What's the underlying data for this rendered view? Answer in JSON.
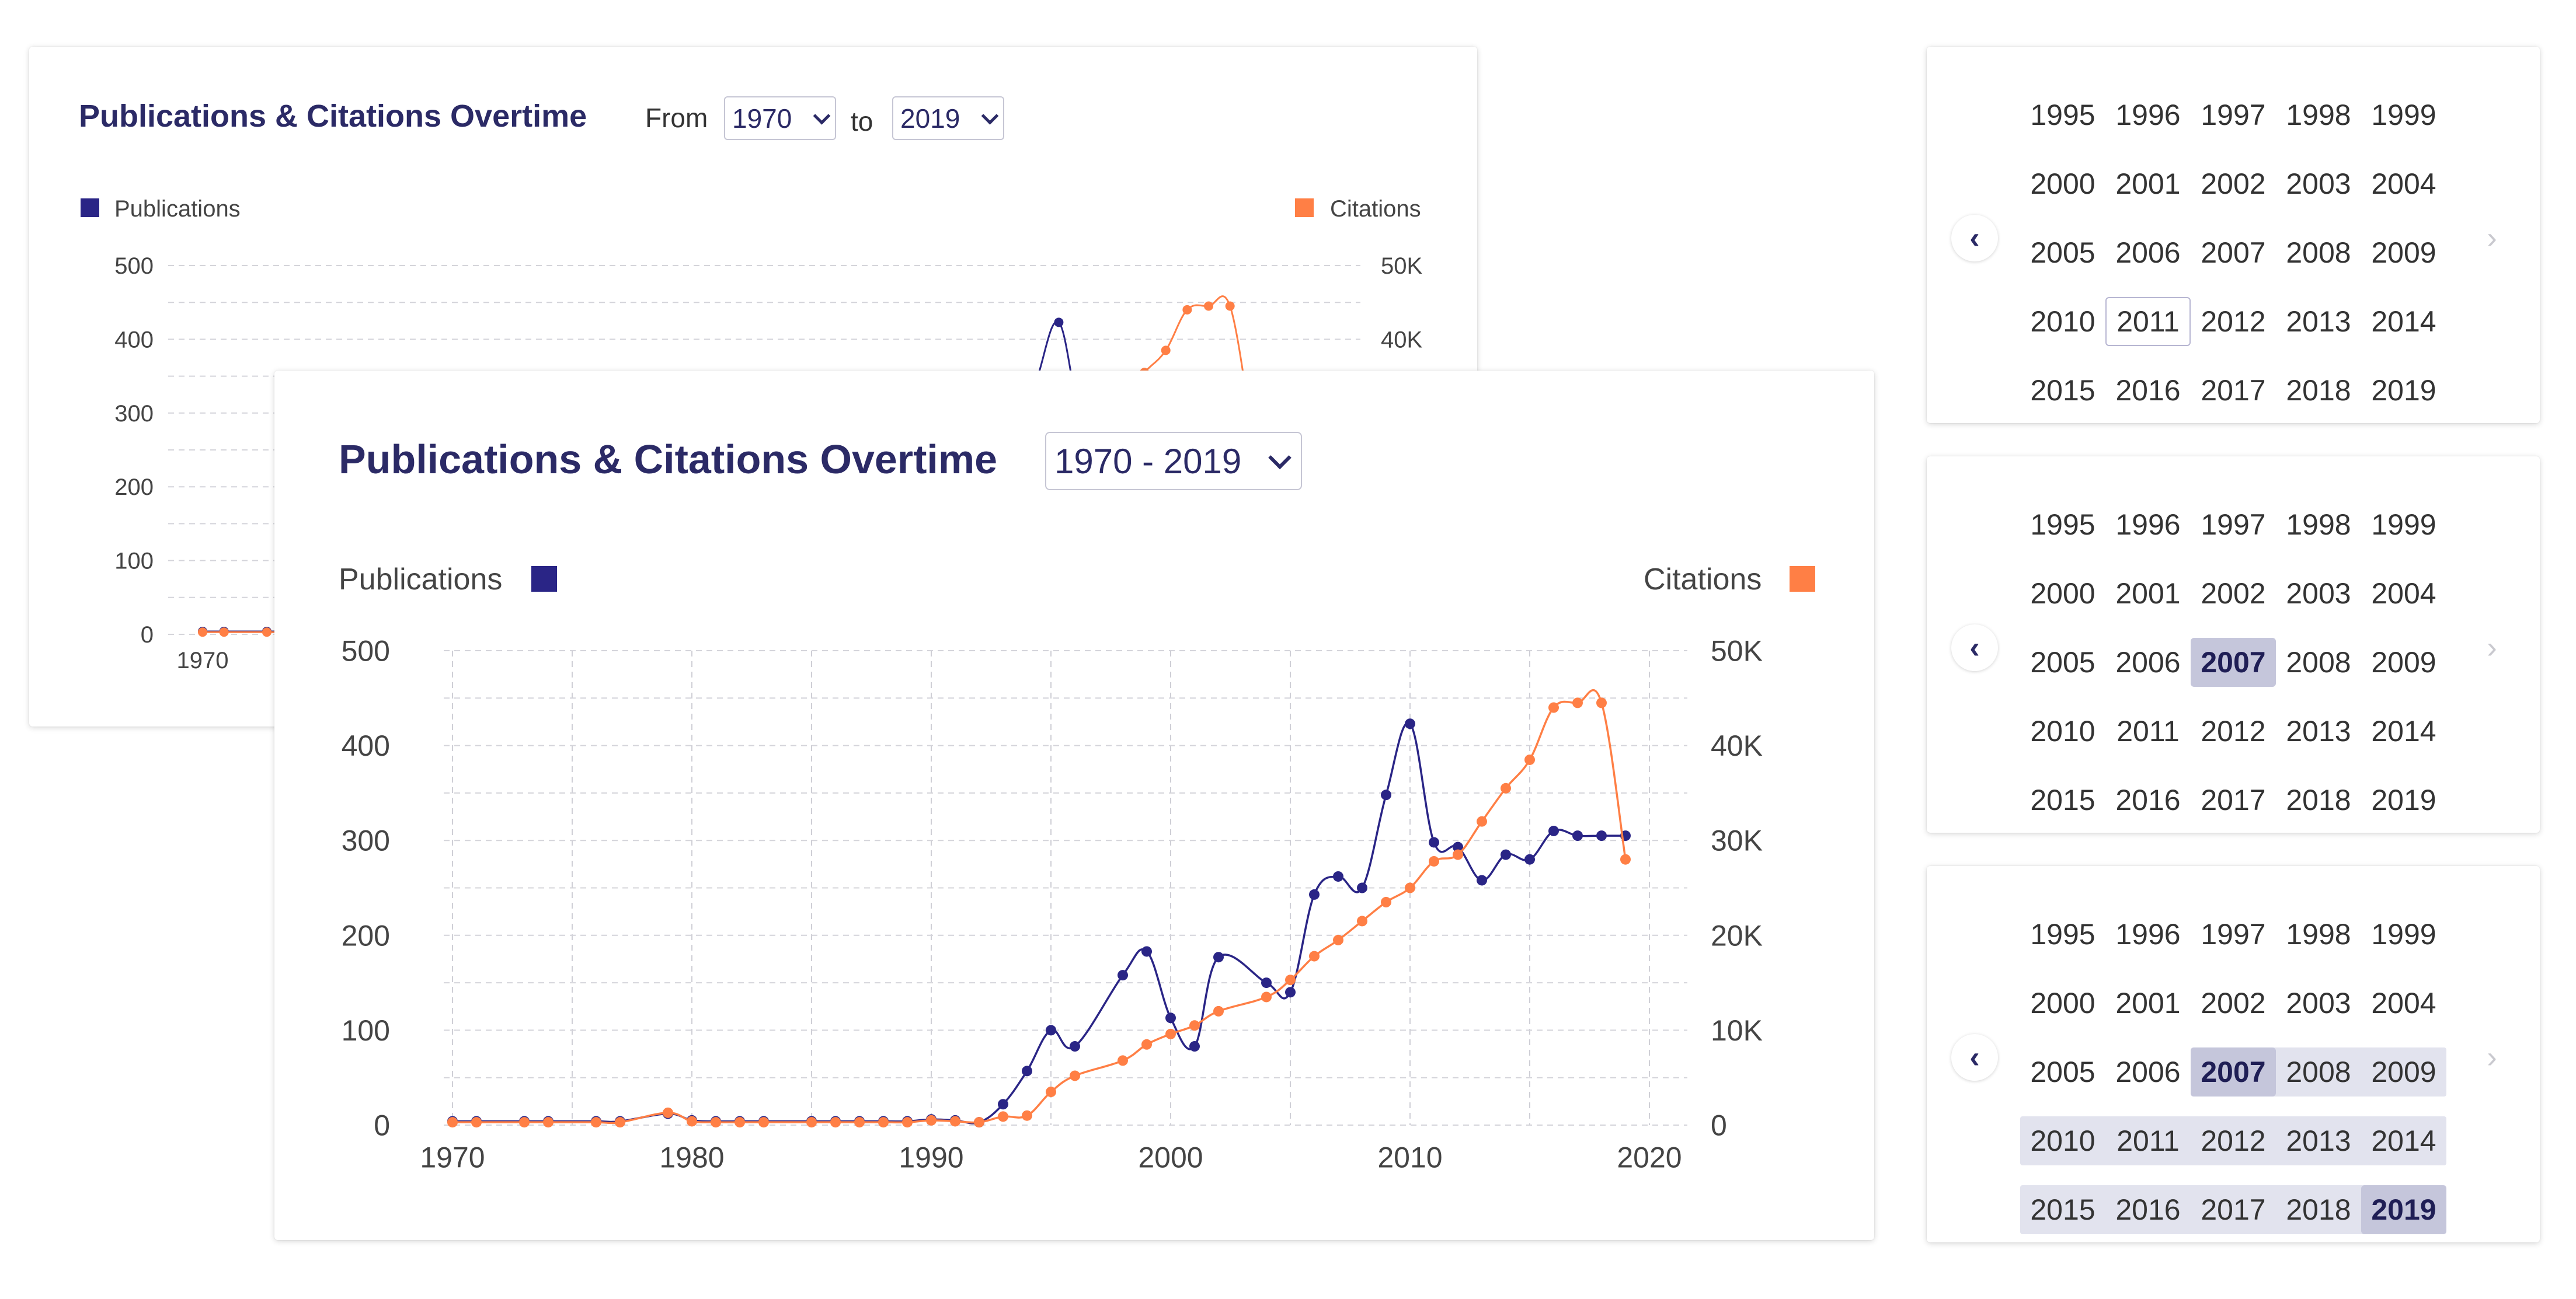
{
  "back_panel": {
    "title": "Publications & Citations Overtime",
    "from_label": "From",
    "from_value": "1970",
    "to_label": "to",
    "to_value": "2019",
    "legend_left": "Publications",
    "legend_right": "Citations",
    "left_ticks": [
      "500",
      "400",
      "300",
      "200",
      "100",
      "0"
    ],
    "right_ticks": [
      "50K",
      "40K"
    ],
    "x_first_tick": "1970"
  },
  "front_panel": {
    "title": "Publications & Citations Overtime",
    "range_value": "1970 - 2019",
    "legend_left": "Publications",
    "legend_right": "Citations"
  },
  "colors": {
    "publications": "#2a2586",
    "citations": "#ff7f45",
    "title": "#2b2a66"
  },
  "chart_data": {
    "type": "line",
    "x": [
      1970,
      1971,
      1973,
      1974,
      1976,
      1977,
      1979,
      1980,
      1981,
      1982,
      1983,
      1985,
      1986,
      1987,
      1988,
      1989,
      1990,
      1991,
      1992,
      1993,
      1994,
      1995,
      1996,
      1998,
      1999,
      2000,
      2001,
      2002,
      2004,
      2005,
      2006,
      2007,
      2008,
      2009,
      2010,
      2011,
      2012,
      2013,
      2014,
      2015,
      2016,
      2017,
      2018,
      2019
    ],
    "series": [
      {
        "name": "Publications",
        "axis": "left",
        "values": [
          4,
          4,
          4,
          4,
          4,
          4,
          12,
          5,
          4,
          4,
          4,
          4,
          4,
          4,
          4,
          4,
          6,
          5,
          3,
          22,
          57,
          100,
          83,
          158,
          183,
          113,
          83,
          177,
          150,
          140,
          243,
          262,
          250,
          348,
          423,
          298,
          293,
          258,
          285,
          280,
          310,
          305,
          305,
          305
        ]
      },
      {
        "name": "Citations",
        "axis": "right",
        "values": [
          300,
          300,
          300,
          300,
          300,
          300,
          1300,
          400,
          300,
          300,
          300,
          300,
          300,
          300,
          300,
          300,
          500,
          400,
          300,
          900,
          1000,
          3500,
          5200,
          6800,
          8500,
          9600,
          10500,
          12000,
          13500,
          15300,
          17800,
          19500,
          21500,
          23500,
          25000,
          27800,
          28500,
          32000,
          35500,
          38500,
          44000,
          44500,
          44500,
          28000
        ]
      }
    ],
    "xlim": [
      1970,
      2020
    ],
    "x_ticks": [
      "1970",
      "1980",
      "1990",
      "2000",
      "2010",
      "2020"
    ],
    "ylim_left": [
      0,
      500
    ],
    "ylim_right": [
      0,
      50000
    ],
    "y_ticks_left": [
      "500",
      "400",
      "300",
      "200",
      "100",
      "0"
    ],
    "y_ticks_right": [
      "50K",
      "40K",
      "30K",
      "20K",
      "10K",
      "0"
    ],
    "grid": true,
    "legend": "top"
  },
  "year_pickers": {
    "prev_icon": "‹",
    "next_icon": "›",
    "rows": [
      [
        "1995",
        "1996",
        "1997",
        "1998",
        "1999"
      ],
      [
        "2000",
        "2001",
        "2002",
        "2003",
        "2004"
      ],
      [
        "2005",
        "2006",
        "2007",
        "2008",
        "2009"
      ],
      [
        "2010",
        "2011",
        "2012",
        "2013",
        "2014"
      ],
      [
        "2015",
        "2016",
        "2017",
        "2018",
        "2019"
      ]
    ],
    "panels": [
      {
        "hover_year": "2011",
        "selected": [],
        "range_from": null,
        "range_to": null
      },
      {
        "hover_year": null,
        "selected": [
          "2007"
        ],
        "range_from": null,
        "range_to": null
      },
      {
        "hover_year": null,
        "selected": [
          "2007",
          "2019"
        ],
        "range_from": "2007",
        "range_to": "2019"
      }
    ]
  }
}
